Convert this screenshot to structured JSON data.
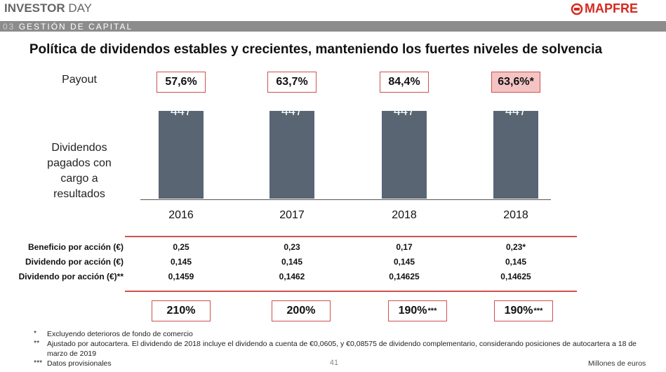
{
  "header": {
    "brand_bold": "INVESTOR",
    "brand_rest": "DAY",
    "logo": "MAPFRE",
    "section_number": "03",
    "section": "GESTIÓN DE CAPITAL"
  },
  "title": "Política de dividendos estables y crecientes, manteniendo los fuertes niveles de solvencia",
  "payout": {
    "label": "Payout",
    "values": [
      "57,6%",
      "63,7%",
      "84,4%",
      "63,6%*"
    ]
  },
  "chart_data": {
    "type": "bar",
    "row_label": "Dividendos pagados con cargo a resultados",
    "categories": [
      "2016",
      "2017",
      "2018",
      "2018"
    ],
    "values": [
      447,
      447,
      447,
      447
    ],
    "color": "#596573"
  },
  "table": {
    "rows": [
      {
        "label": "Beneficio por acción (€)",
        "values": [
          "0,25",
          "0,23",
          "0,17",
          "0,23*"
        ]
      },
      {
        "label": "Dividendo por acción (€)",
        "values": [
          "0,145",
          "0,145",
          "0,145",
          "0,145"
        ]
      },
      {
        "label": "Dividendo por acción (€)**",
        "values": [
          "0,1459",
          "0,1462",
          "0,14625",
          "0,14625"
        ]
      }
    ]
  },
  "ratios": [
    {
      "text": "210%"
    },
    {
      "text": "200%"
    },
    {
      "text": "190%",
      "suffix": "***"
    },
    {
      "text": "190%",
      "suffix": "***"
    }
  ],
  "footnotes": [
    {
      "mark": "*",
      "text": "Excluyendo deterioros de fondo de comercio"
    },
    {
      "mark": "**",
      "text": "Ajustado por autocartera. El dividendo de 2018 incluye el dividendo a cuenta de €0,0605, y €0,08575 de dividendo complementario, considerando posiciones de autocartera a 18 de marzo de 2019"
    },
    {
      "mark": "***",
      "text": "Datos provisionales"
    }
  ],
  "footer": {
    "page": "41",
    "units": "Millones de euros"
  }
}
